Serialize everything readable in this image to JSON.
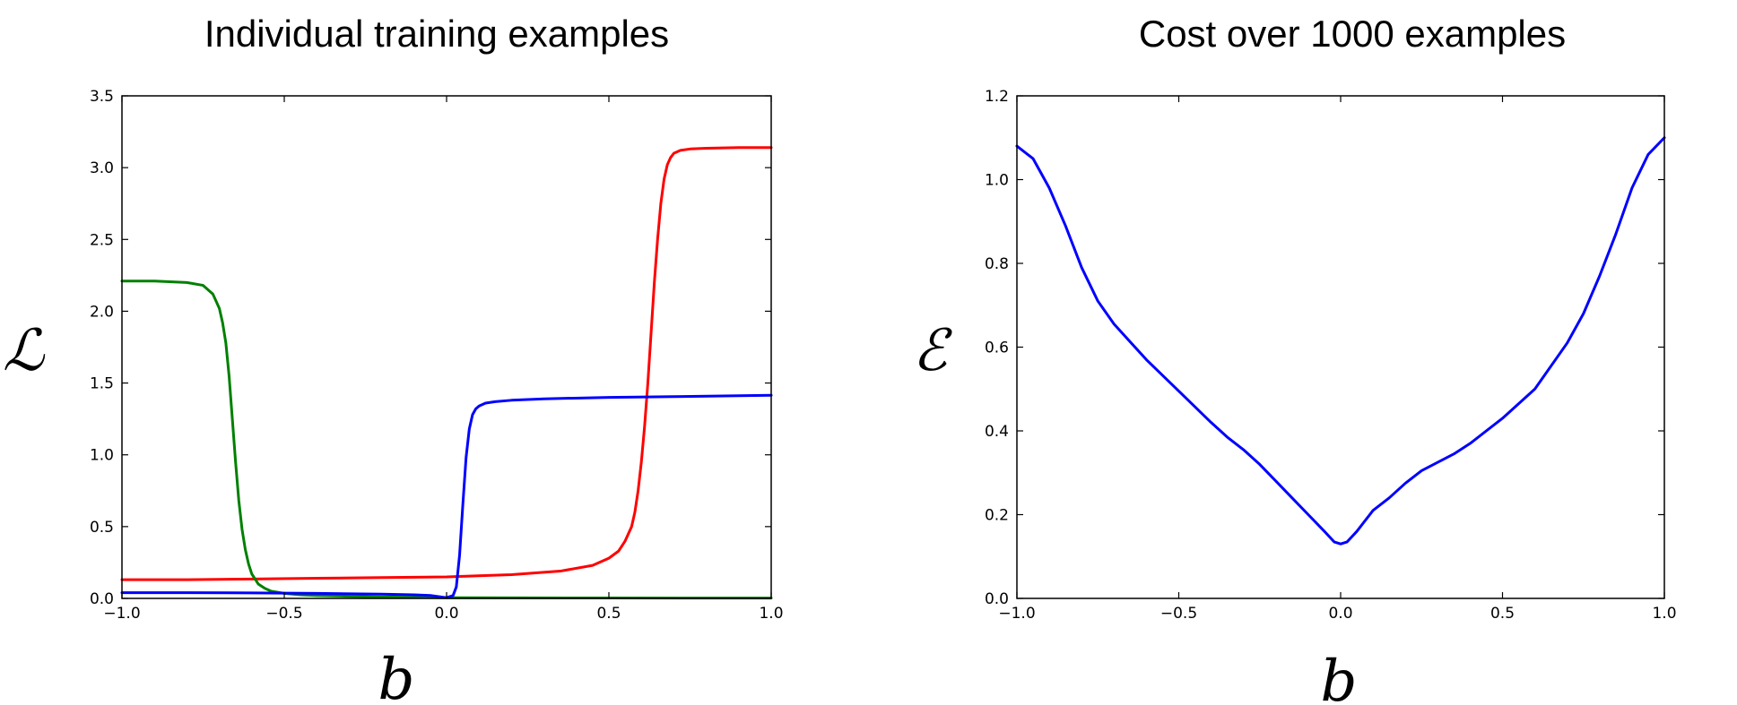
{
  "chart_data": [
    {
      "type": "line",
      "title": "Individual training examples",
      "xlabel": "b",
      "ylabel": "ℒ",
      "xlim": [
        -1.0,
        1.0
      ],
      "ylim": [
        0.0,
        3.5
      ],
      "xticks": [
        "−1.0",
        "−0.5",
        "0.0",
        "0.5",
        "1.0"
      ],
      "xtick_values": [
        -1.0,
        -0.5,
        0.0,
        0.5,
        1.0
      ],
      "yticks": [
        "0.0",
        "0.5",
        "1.0",
        "1.5",
        "2.0",
        "2.5",
        "3.0",
        "3.5"
      ],
      "ytick_values": [
        0.0,
        0.5,
        1.0,
        1.5,
        2.0,
        2.5,
        3.0,
        3.5
      ],
      "grid": false,
      "series": [
        {
          "color": "#ff0000",
          "x": [
            -1.0,
            -0.8,
            -0.6,
            -0.4,
            -0.2,
            0.0,
            0.2,
            0.35,
            0.45,
            0.5,
            0.53,
            0.55,
            0.57,
            0.58,
            0.59,
            0.6,
            0.61,
            0.62,
            0.63,
            0.64,
            0.65,
            0.66,
            0.67,
            0.68,
            0.69,
            0.7,
            0.72,
            0.75,
            0.8,
            0.9,
            1.0
          ],
          "y": [
            0.13,
            0.13,
            0.135,
            0.14,
            0.145,
            0.15,
            0.165,
            0.19,
            0.23,
            0.28,
            0.33,
            0.4,
            0.5,
            0.6,
            0.75,
            0.95,
            1.2,
            1.5,
            1.85,
            2.2,
            2.5,
            2.75,
            2.92,
            3.02,
            3.07,
            3.1,
            3.12,
            3.13,
            3.135,
            3.14,
            3.14
          ]
        },
        {
          "color": "#008000",
          "x": [
            -1.0,
            -0.9,
            -0.8,
            -0.75,
            -0.72,
            -0.7,
            -0.69,
            -0.68,
            -0.67,
            -0.66,
            -0.65,
            -0.64,
            -0.63,
            -0.62,
            -0.61,
            -0.6,
            -0.58,
            -0.56,
            -0.54,
            -0.5,
            -0.45,
            -0.4,
            -0.3,
            -0.2,
            0.0,
            0.5,
            1.0
          ],
          "y": [
            2.21,
            2.21,
            2.2,
            2.18,
            2.12,
            2.02,
            1.92,
            1.78,
            1.55,
            1.25,
            0.95,
            0.68,
            0.48,
            0.34,
            0.24,
            0.17,
            0.1,
            0.07,
            0.05,
            0.035,
            0.025,
            0.02,
            0.015,
            0.01,
            0.005,
            0.003,
            0.002
          ]
        },
        {
          "color": "#0000ff",
          "x": [
            -1.0,
            -0.8,
            -0.6,
            -0.4,
            -0.2,
            -0.1,
            -0.05,
            0.0,
            0.02,
            0.03,
            0.04,
            0.05,
            0.06,
            0.07,
            0.08,
            0.09,
            0.1,
            0.12,
            0.15,
            0.2,
            0.3,
            0.5,
            0.7,
            1.0
          ],
          "y": [
            0.04,
            0.04,
            0.038,
            0.035,
            0.03,
            0.025,
            0.02,
            0.005,
            0.02,
            0.08,
            0.3,
            0.65,
            0.98,
            1.18,
            1.28,
            1.32,
            1.34,
            1.36,
            1.37,
            1.38,
            1.39,
            1.4,
            1.405,
            1.415
          ]
        }
      ]
    },
    {
      "type": "line",
      "title": "Cost over 1000 examples",
      "xlabel": "b",
      "ylabel": "ℰ",
      "xlim": [
        -1.0,
        1.0
      ],
      "ylim": [
        0.0,
        1.2
      ],
      "xticks": [
        "−1.0",
        "−0.5",
        "0.0",
        "0.5",
        "1.0"
      ],
      "xtick_values": [
        -1.0,
        -0.5,
        0.0,
        0.5,
        1.0
      ],
      "yticks": [
        "0.0",
        "0.2",
        "0.4",
        "0.6",
        "0.8",
        "1.0",
        "1.2"
      ],
      "ytick_values": [
        0.0,
        0.2,
        0.4,
        0.6,
        0.8,
        1.0,
        1.2
      ],
      "grid": false,
      "series": [
        {
          "color": "#0000ff",
          "x": [
            -1.0,
            -0.95,
            -0.9,
            -0.85,
            -0.8,
            -0.75,
            -0.7,
            -0.6,
            -0.5,
            -0.4,
            -0.35,
            -0.3,
            -0.25,
            -0.2,
            -0.15,
            -0.1,
            -0.05,
            -0.02,
            0.0,
            0.02,
            0.05,
            0.1,
            0.15,
            0.2,
            0.25,
            0.3,
            0.35,
            0.4,
            0.5,
            0.6,
            0.7,
            0.75,
            0.8,
            0.85,
            0.9,
            0.95,
            1.0
          ],
          "y": [
            1.08,
            1.05,
            0.98,
            0.89,
            0.79,
            0.71,
            0.655,
            0.57,
            0.495,
            0.42,
            0.385,
            0.355,
            0.32,
            0.28,
            0.24,
            0.2,
            0.16,
            0.135,
            0.13,
            0.135,
            0.16,
            0.21,
            0.24,
            0.275,
            0.305,
            0.325,
            0.345,
            0.37,
            0.43,
            0.5,
            0.61,
            0.68,
            0.77,
            0.87,
            0.98,
            1.06,
            1.1
          ]
        }
      ]
    }
  ]
}
